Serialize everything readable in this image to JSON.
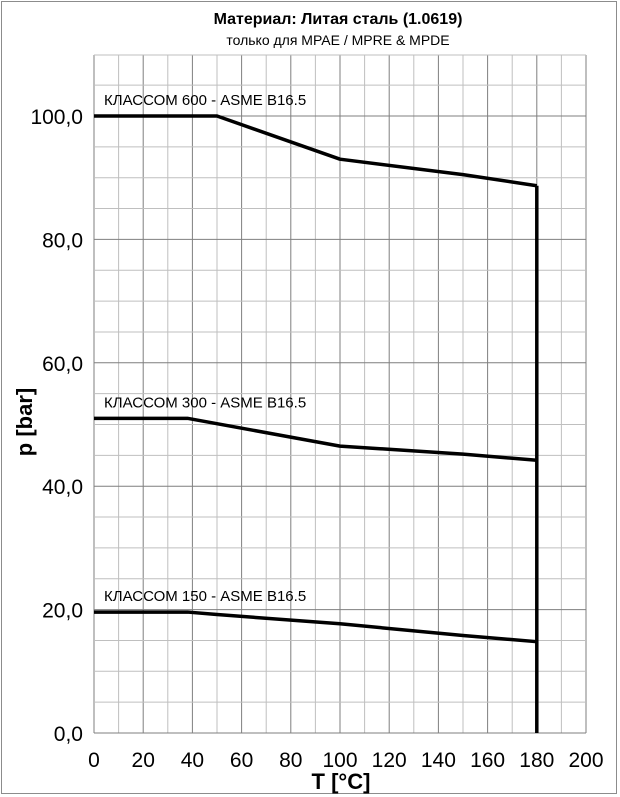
{
  "chart_data": {
    "type": "line",
    "title": "Материал: Литая сталь (1.0619)",
    "subtitle": "только для MPAE / MPRE & MPDE",
    "xlabel": "T [°C]",
    "ylabel": "p [bar]",
    "xlim": [
      0,
      200
    ],
    "ylim": [
      0,
      100
    ],
    "x_ticks": [
      "0",
      "20",
      "40",
      "60",
      "80",
      "100",
      "120",
      "140",
      "160",
      "180",
      "200"
    ],
    "y_ticks": [
      "0,0",
      "20,0",
      "40,0",
      "60,0",
      "80,0",
      "100,0"
    ],
    "grid": true,
    "series": [
      {
        "name": "КЛАССОМ 600 - ASME B16.5",
        "x": [
          0,
          50,
          100,
          150,
          180
        ],
        "y": [
          100,
          100,
          93,
          90.5,
          88.7
        ]
      },
      {
        "name": "КЛАССОМ 300 - ASME B16.5",
        "x": [
          0,
          38,
          100,
          150,
          180
        ],
        "y": [
          51,
          51,
          46.5,
          45.2,
          44.2
        ]
      },
      {
        "name": "КЛАССОМ 150 - ASME B16.5",
        "x": [
          0,
          38,
          50,
          100,
          150,
          180
        ],
        "y": [
          19.6,
          19.6,
          19.2,
          17.7,
          15.8,
          14.8
        ]
      }
    ],
    "limit_line": {
      "x": 180,
      "y_from": 0,
      "y_to": 88.7
    },
    "color": "#000000"
  }
}
